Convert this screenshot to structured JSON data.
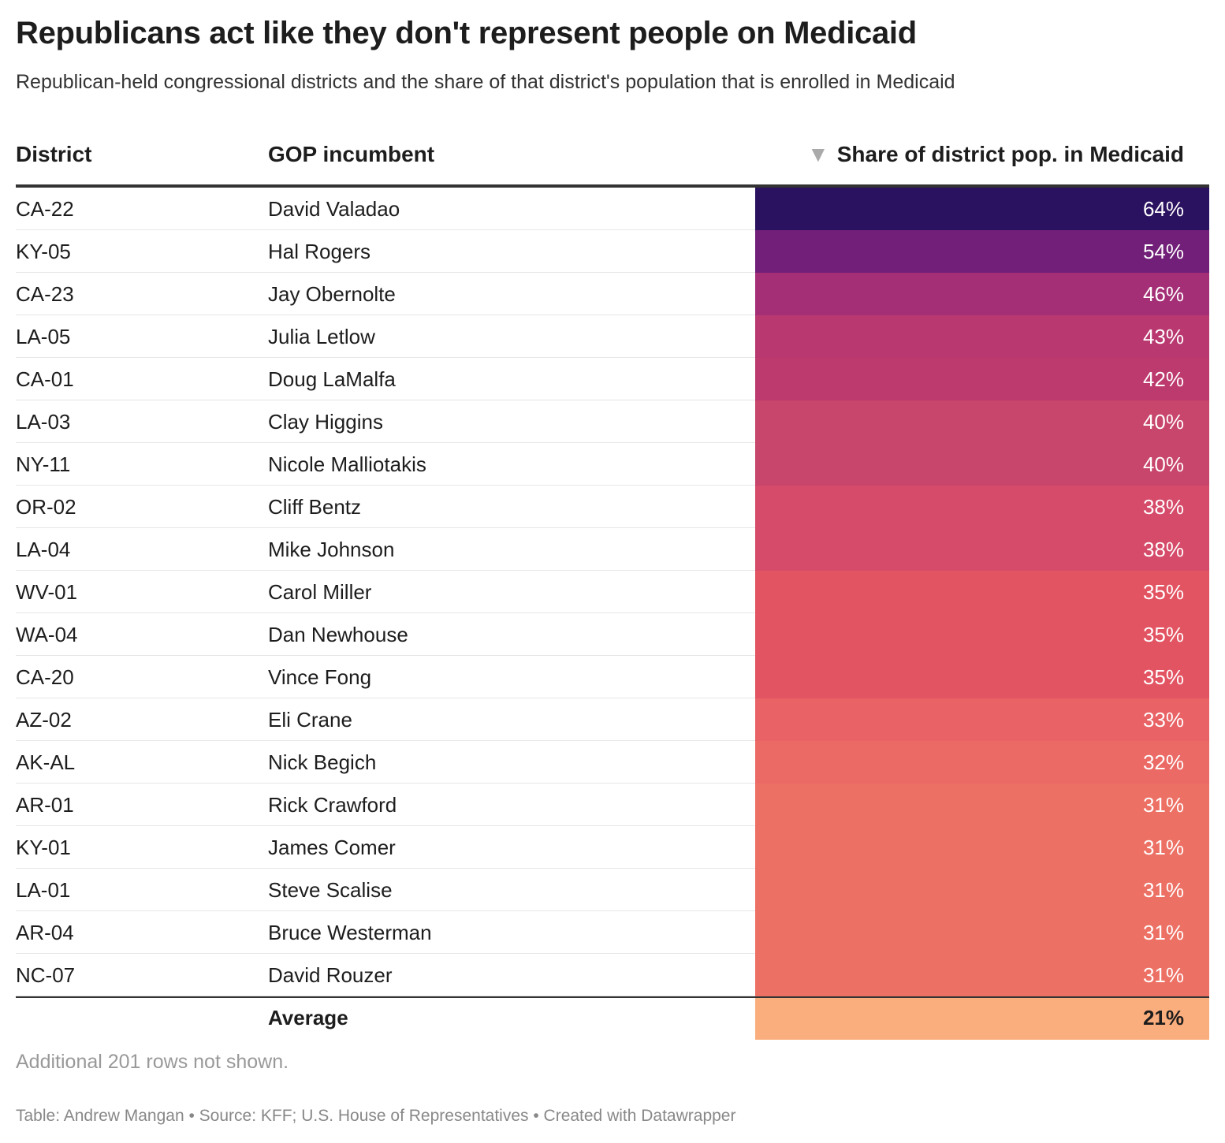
{
  "header": {
    "title": "Republicans act like they don't represent people on Medicaid",
    "subtitle": "Republican-held congressional districts and the share of that district's population that is enrolled in Medicaid"
  },
  "chart_data": {
    "type": "table",
    "columns": [
      "District",
      "GOP incumbent",
      "Share of district pop. in Medicaid"
    ],
    "sort": {
      "column": "Share of district pop. in Medicaid",
      "direction": "descending",
      "icon": "sort-down-triangle-icon"
    },
    "rows": [
      {
        "district": "CA-22",
        "incumbent": "David Valadao",
        "share": "64%",
        "value": 64,
        "color": "#2b1260"
      },
      {
        "district": "KY-05",
        "incumbent": "Hal Rogers",
        "share": "54%",
        "value": 54,
        "color": "#711f78"
      },
      {
        "district": "CA-23",
        "incumbent": "Jay Obernolte",
        "share": "46%",
        "value": 46,
        "color": "#a42f76"
      },
      {
        "district": "LA-05",
        "incumbent": "Julia Letlow",
        "share": "43%",
        "value": 43,
        "color": "#b93870"
      },
      {
        "district": "CA-01",
        "incumbent": "Doug LaMalfa",
        "share": "42%",
        "value": 42,
        "color": "#bd3a6e"
      },
      {
        "district": "LA-03",
        "incumbent": "Clay Higgins",
        "share": "40%",
        "value": 40,
        "color": "#c8456c"
      },
      {
        "district": "NY-11",
        "incumbent": "Nicole Malliotakis",
        "share": "40%",
        "value": 40,
        "color": "#c8456c"
      },
      {
        "district": "OR-02",
        "incumbent": "Cliff Bentz",
        "share": "38%",
        "value": 38,
        "color": "#d54b69"
      },
      {
        "district": "LA-04",
        "incumbent": "Mike Johnson",
        "share": "38%",
        "value": 38,
        "color": "#d54b69"
      },
      {
        "district": "WV-01",
        "incumbent": "Carol Miller",
        "share": "35%",
        "value": 35,
        "color": "#e35462"
      },
      {
        "district": "WA-04",
        "incumbent": "Dan Newhouse",
        "share": "35%",
        "value": 35,
        "color": "#e35462"
      },
      {
        "district": "CA-20",
        "incumbent": "Vince Fong",
        "share": "35%",
        "value": 35,
        "color": "#e35462"
      },
      {
        "district": "AZ-02",
        "incumbent": "Eli Crane",
        "share": "33%",
        "value": 33,
        "color": "#e96265"
      },
      {
        "district": "AK-AL",
        "incumbent": "Nick Begich",
        "share": "32%",
        "value": 32,
        "color": "#eb6a65"
      },
      {
        "district": "AR-01",
        "incumbent": "Rick Crawford",
        "share": "31%",
        "value": 31,
        "color": "#ed7064"
      },
      {
        "district": "KY-01",
        "incumbent": "James Comer",
        "share": "31%",
        "value": 31,
        "color": "#ed7064"
      },
      {
        "district": "LA-01",
        "incumbent": "Steve Scalise",
        "share": "31%",
        "value": 31,
        "color": "#ed7064"
      },
      {
        "district": "AR-04",
        "incumbent": "Bruce Westerman",
        "share": "31%",
        "value": 31,
        "color": "#ed7064"
      },
      {
        "district": "NC-07",
        "incumbent": "David Rouzer",
        "share": "31%",
        "value": 31,
        "color": "#ed7064"
      }
    ],
    "summary": {
      "label": "Average",
      "share": "21%",
      "value": 21,
      "color": "#fbae7d"
    }
  },
  "notes": "Additional 201 rows not shown.",
  "footer": "Table: Andrew Mangan • Source: KFF; U.S. House of Representatives • Created with Datawrapper"
}
